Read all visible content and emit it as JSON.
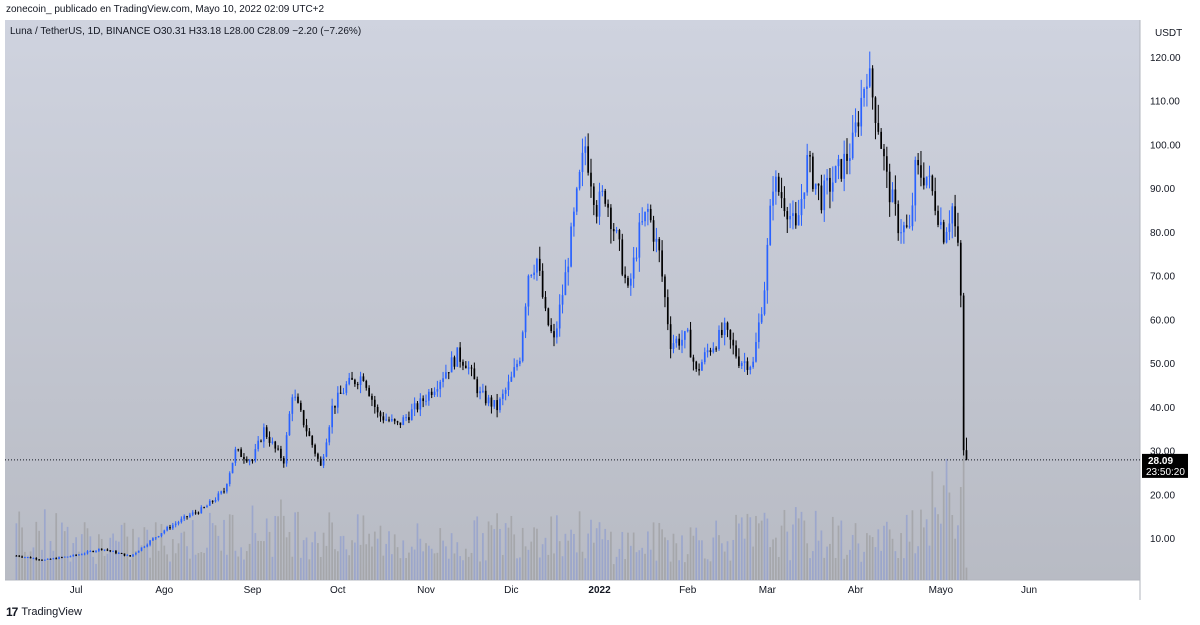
{
  "header": {
    "published_by": "zonecoin_ publicado en TradingView.com, Mayo 10, 2022 02:09 UTC+2"
  },
  "footer": {
    "logo_text": "TradingView",
    "logo_mark": "17"
  },
  "colors": {
    "up": "#2962ff",
    "down": "#000000",
    "last_price_bg": "#000000",
    "background_top": "#cfd3df",
    "background_bottom": "#b8bbc4"
  },
  "chart_data": {
    "type": "candlestick",
    "legend": "Luna / TetherUS, 1D, BINANCE  O30.31  H33.18  L28.00  C28.09  −2.20 (−7.26%)",
    "ohlc": {
      "open": 30.31,
      "high": 33.18,
      "low": 28.0,
      "close": 28.09,
      "change": -2.2,
      "change_pct": -7.26
    },
    "currency": "USDT",
    "ylim": [
      0,
      125
    ],
    "y_ticks": [
      10,
      20,
      30,
      40,
      50,
      60,
      70,
      80,
      90,
      100,
      110,
      120
    ],
    "y_tick_labels": [
      "10.00",
      "20.00",
      "30.00",
      "40.00",
      "50.00",
      "60.00",
      "70.00",
      "80.00",
      "90.00",
      "100.00",
      "110.00",
      "120.00"
    ],
    "x_labels": [
      {
        "label": "Jul",
        "date": "2021-07-01",
        "bold": false
      },
      {
        "label": "Ago",
        "date": "2021-08-01",
        "bold": false
      },
      {
        "label": "Sep",
        "date": "2021-09-01",
        "bold": false
      },
      {
        "label": "Oct",
        "date": "2021-10-01",
        "bold": false
      },
      {
        "label": "Nov",
        "date": "2021-11-01",
        "bold": false
      },
      {
        "label": "Dic",
        "date": "2021-12-01",
        "bold": false
      },
      {
        "label": "2022",
        "date": "2022-01-01",
        "bold": true
      },
      {
        "label": "Feb",
        "date": "2022-02-01",
        "bold": false
      },
      {
        "label": "Mar",
        "date": "2022-03-01",
        "bold": false
      },
      {
        "label": "Abr",
        "date": "2022-04-01",
        "bold": false
      },
      {
        "label": "Mayo",
        "date": "2022-05-01",
        "bold": false
      },
      {
        "label": "Jun",
        "date": "2022-06-01",
        "bold": false
      }
    ],
    "x_range": [
      "2021-06-06",
      "2022-07-10"
    ],
    "last_price": {
      "value": 28.09,
      "label": "28.09",
      "countdown": "23:50:20"
    },
    "close_series": {
      "start_date": "2021-06-10",
      "interval": "1D",
      "anchors": [
        [
          "2021-06-10",
          6.2
        ],
        [
          "2021-06-20",
          5.2
        ],
        [
          "2021-07-01",
          6.3
        ],
        [
          "2021-07-10",
          7.8
        ],
        [
          "2021-07-20",
          6.0
        ],
        [
          "2021-08-01",
          12.0
        ],
        [
          "2021-08-10",
          15.5
        ],
        [
          "2021-08-15",
          17.0
        ],
        [
          "2021-08-22",
          21.0
        ],
        [
          "2021-08-26",
          30.0
        ],
        [
          "2021-09-01",
          28.0
        ],
        [
          "2021-09-05",
          35.0
        ],
        [
          "2021-09-09",
          30.5
        ],
        [
          "2021-09-12",
          28.0
        ],
        [
          "2021-09-15",
          43.5
        ],
        [
          "2021-09-20",
          35.0
        ],
        [
          "2021-09-25",
          26.5
        ],
        [
          "2021-09-29",
          40.0
        ],
        [
          "2021-10-04",
          45.0
        ],
        [
          "2021-10-10",
          47.5
        ],
        [
          "2021-10-15",
          38.5
        ],
        [
          "2021-10-22",
          36.0
        ],
        [
          "2021-10-30",
          41.0
        ],
        [
          "2021-11-04",
          45.0
        ],
        [
          "2021-11-12",
          52.0
        ],
        [
          "2021-11-15",
          50.5
        ],
        [
          "2021-11-20",
          43.0
        ],
        [
          "2021-11-26",
          40.0
        ],
        [
          "2021-12-01",
          46.5
        ],
        [
          "2021-12-04",
          52.0
        ],
        [
          "2021-12-07",
          71.0
        ],
        [
          "2021-12-10",
          74.0
        ],
        [
          "2021-12-13",
          61.0
        ],
        [
          "2021-12-16",
          55.0
        ],
        [
          "2021-12-20",
          70.0
        ],
        [
          "2021-12-25",
          92.0
        ],
        [
          "2021-12-27",
          100.0
        ],
        [
          "2021-12-31",
          86.0
        ],
        [
          "2022-01-03",
          89.0
        ],
        [
          "2022-01-08",
          76.0
        ],
        [
          "2022-01-11",
          66.0
        ],
        [
          "2022-01-15",
          80.0
        ],
        [
          "2022-01-18",
          85.0
        ],
        [
          "2022-01-22",
          75.0
        ],
        [
          "2022-01-26",
          55.0
        ],
        [
          "2022-02-01",
          56.0
        ],
        [
          "2022-02-04",
          48.0
        ],
        [
          "2022-02-08",
          53.0
        ],
        [
          "2022-02-14",
          57.5
        ],
        [
          "2022-02-19",
          51.0
        ],
        [
          "2022-02-24",
          50.0
        ],
        [
          "2022-02-28",
          68.0
        ],
        [
          "2022-03-03",
          92.0
        ],
        [
          "2022-03-08",
          86.0
        ],
        [
          "2022-03-11",
          80.0
        ],
        [
          "2022-03-15",
          96.0
        ],
        [
          "2022-03-20",
          88.0
        ],
        [
          "2022-03-27",
          95.0
        ],
        [
          "2022-03-31",
          100.0
        ],
        [
          "2022-04-05",
          117.5
        ],
        [
          "2022-04-09",
          105.0
        ],
        [
          "2022-04-12",
          92.0
        ],
        [
          "2022-04-16",
          82.0
        ],
        [
          "2022-04-20",
          80.0
        ],
        [
          "2022-04-22",
          94.0
        ],
        [
          "2022-04-26",
          93.0
        ],
        [
          "2022-04-29",
          87.0
        ],
        [
          "2022-05-02",
          80.0
        ],
        [
          "2022-05-05",
          86.0
        ],
        [
          "2022-05-07",
          76.0
        ],
        [
          "2022-05-08",
          65.0
        ],
        [
          "2022-05-09",
          30.31
        ],
        [
          "2022-05-10",
          28.09
        ]
      ]
    },
    "volume_series": {
      "max_label": "",
      "anchors": [
        [
          "2021-06-10",
          9
        ],
        [
          "2021-07-10",
          6
        ],
        [
          "2021-08-10",
          7
        ],
        [
          "2021-09-10",
          9
        ],
        [
          "2021-10-10",
          7
        ],
        [
          "2021-11-10",
          6
        ],
        [
          "2021-12-10",
          9
        ],
        [
          "2022-01-10",
          6
        ],
        [
          "2022-02-10",
          7
        ],
        [
          "2022-03-10",
          8
        ],
        [
          "2022-04-10",
          6
        ],
        [
          "2022-05-08",
          15
        ],
        [
          "2022-05-09",
          28
        ],
        [
          "2022-05-10",
          2
        ]
      ]
    }
  }
}
